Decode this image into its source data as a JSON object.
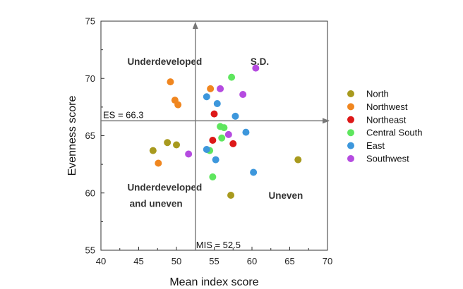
{
  "chart_data": {
    "type": "scatter",
    "xlabel": "Mean index score",
    "ylabel": "Evenness score",
    "xlim": [
      40,
      70
    ],
    "ylim": [
      55,
      75
    ],
    "xticks": [
      40,
      45,
      50,
      55,
      60,
      65,
      70
    ],
    "yticks": [
      55,
      60,
      65,
      70,
      75
    ],
    "reference_lines": {
      "horizontal": {
        "value": 66.3,
        "label": "ES = 66.3"
      },
      "vertical": {
        "value": 52.5,
        "label": "MIS = 52.5"
      }
    },
    "quadrant_labels": [
      {
        "text": "Underdeveloped",
        "x": 43.5,
        "y": 71.2
      },
      {
        "text": "S.D.",
        "x": 59.8,
        "y": 71.2
      },
      {
        "text": "Underdeveloped",
        "x": 43.5,
        "y": 60.2
      },
      {
        "text": "and uneven",
        "x": 43.8,
        "y": 58.8
      },
      {
        "text": "Uneven",
        "x": 62.2,
        "y": 59.5
      }
    ],
    "series": [
      {
        "name": "North",
        "color": "#a89a1e",
        "points": [
          [
            46.9,
            63.7
          ],
          [
            48.8,
            64.4
          ],
          [
            50.0,
            64.2
          ],
          [
            57.2,
            59.8
          ],
          [
            66.1,
            62.9
          ]
        ]
      },
      {
        "name": "Northwest",
        "color": "#f0861f",
        "points": [
          [
            47.6,
            62.6
          ],
          [
            49.2,
            69.7
          ],
          [
            49.8,
            68.1
          ],
          [
            50.2,
            67.7
          ],
          [
            54.5,
            69.1
          ]
        ]
      },
      {
        "name": "Northeast",
        "color": "#dd1818",
        "points": [
          [
            55.0,
            66.9
          ],
          [
            54.8,
            64.6
          ],
          [
            57.5,
            64.3
          ]
        ]
      },
      {
        "name": "Central South",
        "color": "#5ee65e",
        "points": [
          [
            57.3,
            70.1
          ],
          [
            55.8,
            65.8
          ],
          [
            56.3,
            65.7
          ],
          [
            56.0,
            64.8
          ],
          [
            54.4,
            63.7
          ],
          [
            54.8,
            61.4
          ]
        ]
      },
      {
        "name": "East",
        "color": "#3d97dc",
        "points": [
          [
            54.0,
            68.4
          ],
          [
            55.4,
            67.8
          ],
          [
            57.8,
            66.7
          ],
          [
            59.2,
            65.3
          ],
          [
            54.0,
            63.8
          ],
          [
            55.2,
            62.9
          ],
          [
            60.2,
            61.8
          ]
        ]
      },
      {
        "name": "Southwest",
        "color": "#b54be0",
        "points": [
          [
            60.5,
            70.9
          ],
          [
            55.8,
            69.1
          ],
          [
            58.8,
            68.6
          ],
          [
            56.9,
            65.1
          ],
          [
            51.6,
            63.4
          ]
        ]
      }
    ]
  }
}
